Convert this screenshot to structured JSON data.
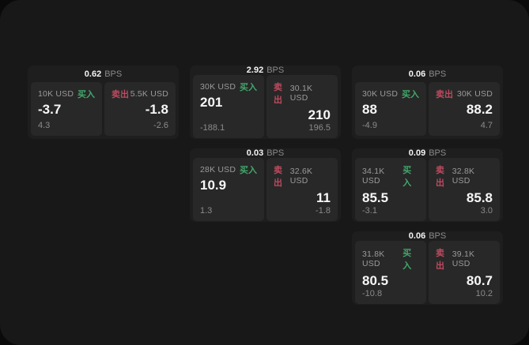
{
  "labels": {
    "bps_unit": "BPS",
    "buy": "买入",
    "sell": "卖出"
  },
  "colors": {
    "buy": "#41a86a",
    "sell": "#bd4a5f",
    "surface": "#181818",
    "card": "#1e1e1e",
    "tile": "#282828"
  },
  "cards": [
    {
      "col": 0,
      "row": 0,
      "bps": "0.62",
      "buy": {
        "amount": "10K USD",
        "price": "-3.7",
        "delta": "4.3"
      },
      "sell": {
        "amount": "5.5K USD",
        "price": "-1.8",
        "delta": "-2.6"
      }
    },
    {
      "col": 1,
      "row": 0,
      "bps": "2.92",
      "buy": {
        "amount": "30K USD",
        "price": "201",
        "delta": "-188.1"
      },
      "sell": {
        "amount": "30.1K USD",
        "price": "210",
        "delta": "196.5"
      }
    },
    {
      "col": 2,
      "row": 0,
      "bps": "0.06",
      "buy": {
        "amount": "30K USD",
        "price": "88",
        "delta": "-4.9"
      },
      "sell": {
        "amount": "30K USD",
        "price": "88.2",
        "delta": "4.7"
      }
    },
    {
      "col": 1,
      "row": 1,
      "bps": "0.03",
      "buy": {
        "amount": "28K USD",
        "price": "10.9",
        "delta": "1.3"
      },
      "sell": {
        "amount": "32.6K USD",
        "price": "11",
        "delta": "-1.8"
      }
    },
    {
      "col": 2,
      "row": 1,
      "bps": "0.09",
      "buy": {
        "amount": "34.1K USD",
        "price": "85.5",
        "delta": "-3.1"
      },
      "sell": {
        "amount": "32.8K USD",
        "price": "85.8",
        "delta": "3.0"
      }
    },
    {
      "col": 2,
      "row": 2,
      "bps": "0.06",
      "buy": {
        "amount": "31.8K USD",
        "price": "80.5",
        "delta": "-10.8"
      },
      "sell": {
        "amount": "39.1K USD",
        "price": "80.7",
        "delta": "10.2"
      }
    }
  ]
}
